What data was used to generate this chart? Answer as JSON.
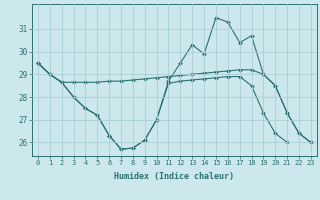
{
  "xlabel": "Humidex (Indice chaleur)",
  "x": [
    0,
    1,
    2,
    3,
    4,
    5,
    6,
    7,
    8,
    9,
    10,
    11,
    12,
    13,
    14,
    15,
    16,
    17,
    18,
    19,
    20,
    21,
    22,
    23
  ],
  "line1": [
    29.5,
    29.0,
    28.65,
    28.65,
    28.65,
    28.65,
    28.7,
    28.7,
    28.75,
    28.8,
    28.85,
    28.9,
    28.95,
    29.0,
    29.05,
    29.1,
    29.15,
    29.2,
    29.2,
    29.0,
    28.5,
    27.3,
    26.4,
    26.0
  ],
  "line2": [
    29.5,
    29.0,
    28.65,
    28.0,
    27.5,
    27.2,
    26.3,
    25.7,
    25.75,
    26.1,
    27.0,
    28.7,
    29.5,
    30.3,
    29.9,
    31.5,
    31.3,
    30.4,
    30.7,
    29.0,
    28.5,
    27.3,
    26.4,
    26.0
  ],
  "line3": [
    29.5,
    29.0,
    28.65,
    28.0,
    27.5,
    27.2,
    26.3,
    25.7,
    25.75,
    26.1,
    27.0,
    28.6,
    28.7,
    28.75,
    28.8,
    28.85,
    28.9,
    28.9,
    28.5,
    27.3,
    26.4,
    26.0,
    null,
    null
  ],
  "bg_color": "#cde8ed",
  "grid_color": "#aacdd5",
  "line_color": "#2a7070",
  "ylim": [
    25.4,
    32.1
  ],
  "yticks": [
    26,
    27,
    28,
    29,
    30,
    31
  ],
  "xticks": [
    0,
    1,
    2,
    3,
    4,
    5,
    6,
    7,
    8,
    9,
    10,
    11,
    12,
    13,
    14,
    15,
    16,
    17,
    18,
    19,
    20,
    21,
    22,
    23
  ]
}
